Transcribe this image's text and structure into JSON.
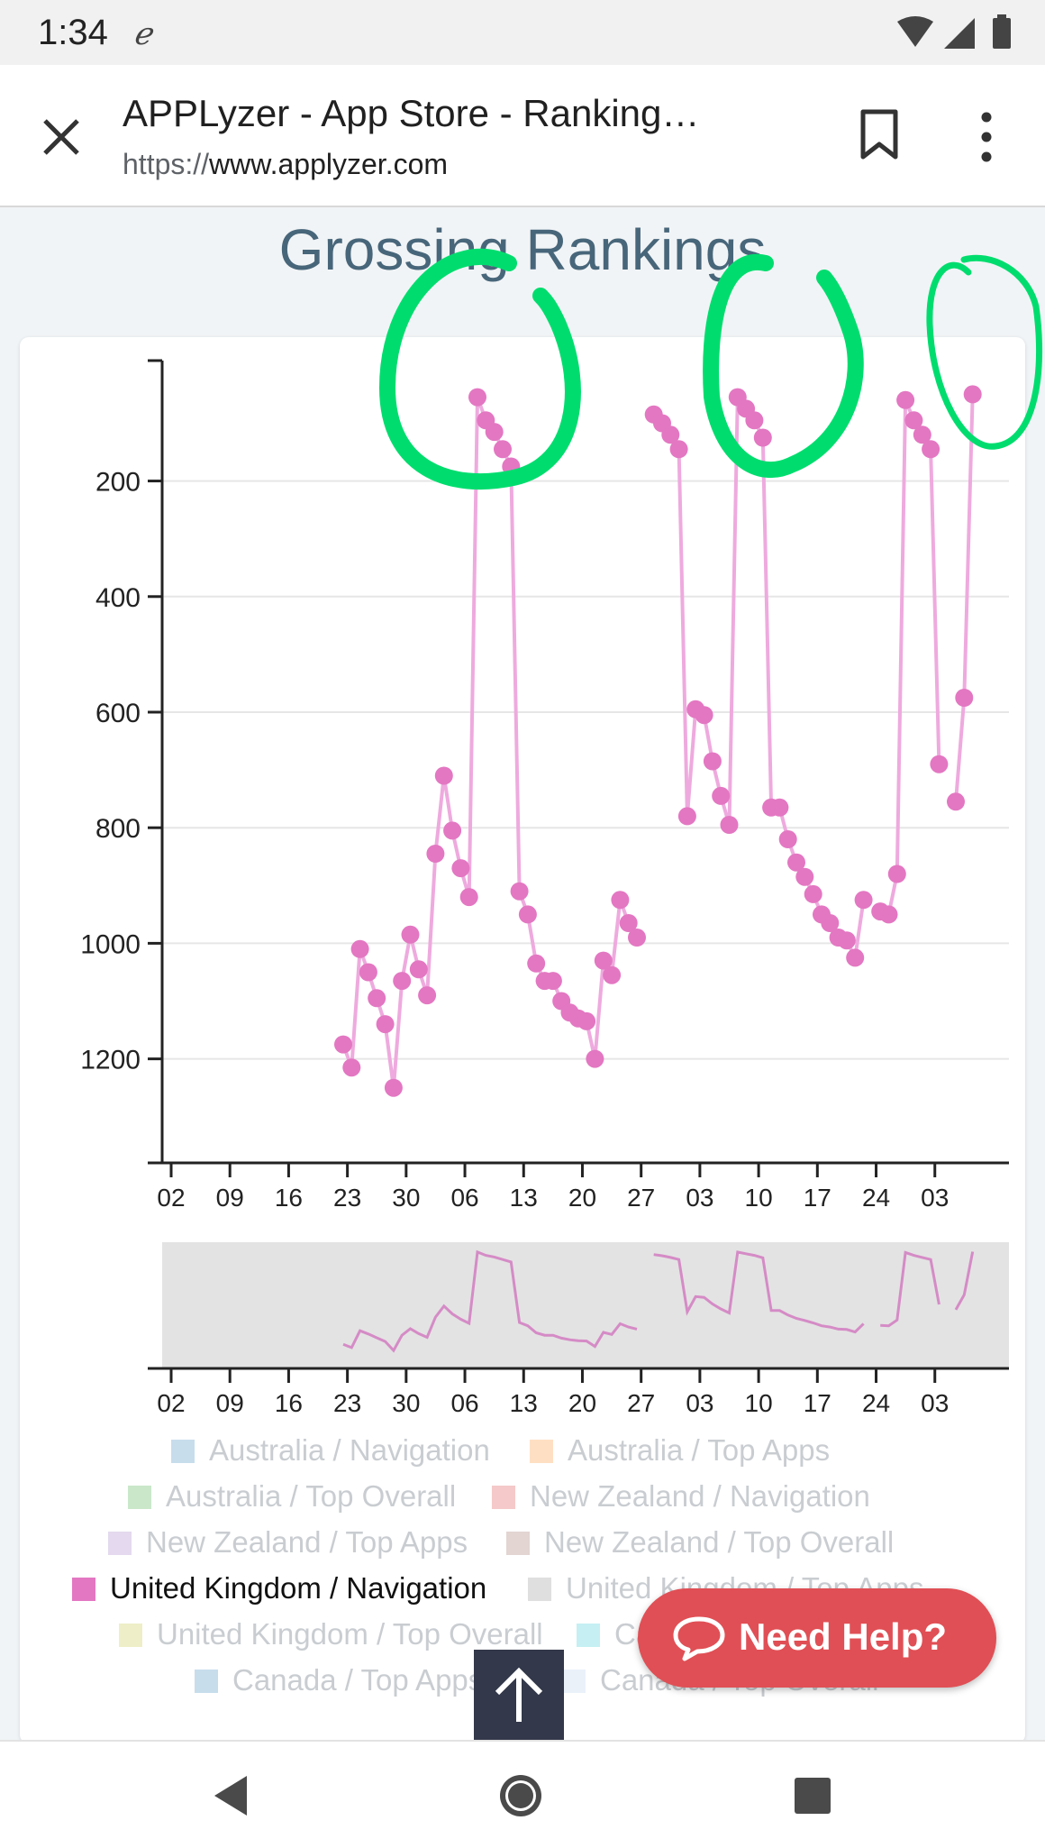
{
  "status_bar": {
    "time": "1:34"
  },
  "toolbar": {
    "title": "APPLyzer - App Store - Ranking…",
    "url_scheme": "https://",
    "url_host": "www.applyzer.com"
  },
  "page_title": "Grossing Rankings",
  "chart_data": {
    "type": "line",
    "title": "",
    "xlabel": "",
    "ylabel": "",
    "y_reversed": true,
    "ylim": [
      1,
      1380
    ],
    "y_ticks": [
      200,
      400,
      600,
      800,
      1000,
      1200
    ],
    "x_ticks": [
      "02",
      "09",
      "16",
      "23",
      "30",
      "06",
      "13",
      "20",
      "27",
      "03",
      "10",
      "17",
      "24",
      "03"
    ],
    "grid": "horizontal",
    "series": [
      {
        "name": "United Kingdom / Navigation",
        "color": "#e377c2",
        "segments": [
          [
            [
              20.5,
              1175
            ],
            [
              21.5,
              1215
            ],
            [
              22.5,
              1010
            ],
            [
              23.5,
              1050
            ],
            [
              24.5,
              1095
            ],
            [
              25.5,
              1140
            ],
            [
              26.5,
              1250
            ],
            [
              27.5,
              1065
            ],
            [
              28.5,
              985
            ],
            [
              29.5,
              1045
            ],
            [
              30.5,
              1090
            ],
            [
              31.5,
              845
            ],
            [
              32.5,
              710
            ],
            [
              33.5,
              805
            ],
            [
              34.5,
              870
            ],
            [
              35.5,
              920
            ],
            [
              36.5,
              55
            ],
            [
              37.5,
              95
            ],
            [
              38.5,
              115
            ],
            [
              39.5,
              145
            ],
            [
              40.5,
              175
            ],
            [
              41.5,
              910
            ],
            [
              42.5,
              950
            ],
            [
              43.5,
              1035
            ],
            [
              44.5,
              1065
            ],
            [
              45.5,
              1065
            ],
            [
              46.5,
              1100
            ],
            [
              47.5,
              1120
            ],
            [
              48.5,
              1130
            ],
            [
              49.5,
              1135
            ],
            [
              50.5,
              1200
            ],
            [
              51.5,
              1030
            ],
            [
              52.5,
              1055
            ],
            [
              53.5,
              925
            ],
            [
              54.5,
              965
            ],
            [
              55.5,
              990
            ]
          ],
          [
            [
              57.5,
              85
            ],
            [
              58.5,
              100
            ],
            [
              59.5,
              120
            ],
            [
              60.5,
              145
            ],
            [
              61.5,
              780
            ],
            [
              62.5,
              595
            ],
            [
              63.5,
              605
            ],
            [
              64.5,
              685
            ],
            [
              65.5,
              745
            ],
            [
              66.5,
              795
            ],
            [
              67.5,
              55
            ],
            [
              68.5,
              75
            ],
            [
              69.5,
              95
            ],
            [
              70.5,
              125
            ],
            [
              71.5,
              765
            ],
            [
              72.5,
              765
            ],
            [
              73.5,
              820
            ],
            [
              74.5,
              860
            ],
            [
              75.5,
              885
            ],
            [
              76.5,
              915
            ],
            [
              77.5,
              950
            ],
            [
              78.5,
              965
            ],
            [
              79.5,
              990
            ],
            [
              80.5,
              995
            ],
            [
              81.5,
              1025
            ],
            [
              82.5,
              925
            ]
          ],
          [
            [
              84.5,
              945
            ],
            [
              85.5,
              950
            ],
            [
              86.5,
              880
            ],
            [
              87.5,
              60
            ],
            [
              88.5,
              95
            ],
            [
              89.5,
              120
            ],
            [
              90.5,
              145
            ],
            [
              91.5,
              690
            ]
          ],
          [
            [
              93.5,
              755
            ],
            [
              94.5,
              575
            ],
            [
              95.5,
              50
            ]
          ]
        ]
      }
    ],
    "legend_position": "bottom",
    "legend": [
      {
        "label": "Australia / Navigation",
        "color": "#1f77b4",
        "active": false
      },
      {
        "label": "Australia / Top Apps",
        "color": "#ff7f0e",
        "active": false
      },
      {
        "label": "Australia / Top Overall",
        "color": "#2ca02c",
        "active": false
      },
      {
        "label": "New Zealand / Navigation",
        "color": "#d62728",
        "active": false
      },
      {
        "label": "New Zealand / Top Apps",
        "color": "#9467bd",
        "active": false
      },
      {
        "label": "New Zealand / Top Overall",
        "color": "#8c564b",
        "active": false
      },
      {
        "label": "United Kingdom / Navigation",
        "color": "#e377c2",
        "active": true
      },
      {
        "label": "United Kingdom / Top Apps",
        "color": "#7f7f7f",
        "active": false
      },
      {
        "label": "United Kingdom / Top Overall",
        "color": "#bcbd22",
        "active": false
      },
      {
        "label": "Canada / Navigation",
        "color": "#17becf",
        "active": false
      },
      {
        "label": "Canada / Top Apps",
        "color": "#1f77b4",
        "active": false
      },
      {
        "label": "Canada / Top Overall",
        "color": "#aec7e8",
        "active": false
      }
    ]
  },
  "help_button": {
    "label": "Need Help?"
  },
  "annotation_color": "#00dd6e"
}
